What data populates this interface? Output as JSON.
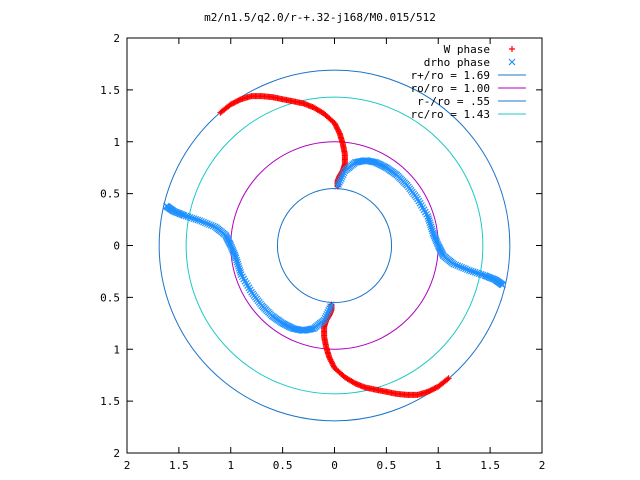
{
  "chart_data": {
    "type": "scatter",
    "title": "m2/n1.5/q2.0/r-+.32-j168/M0.015/512",
    "xlabel": "",
    "ylabel": "",
    "xlim": [
      -2,
      2
    ],
    "ylim": [
      -2,
      2
    ],
    "x_tick_values": [
      -2,
      -1.5,
      -1,
      -0.5,
      0,
      0.5,
      1,
      1.5,
      2
    ],
    "x_tick_labels": [
      "2",
      "1.5",
      "1",
      "0.5",
      "0",
      "0.5",
      "1",
      "1.5",
      "2"
    ],
    "y_tick_values": [
      2,
      1.5,
      1,
      0.5,
      0,
      -0.5,
      -1,
      -1.5,
      -2
    ],
    "y_tick_labels": [
      "2",
      "1.5",
      "1",
      "0.5",
      "0",
      "0.5",
      "1",
      "1.5",
      "2"
    ],
    "grid": false,
    "legend_position": "top-right",
    "series": [
      {
        "name": "W phase",
        "marker": "plus",
        "color": "#ff0000",
        "x": [
          -1.1,
          -1.0,
          -0.9,
          -0.8,
          -0.7,
          -0.6,
          -0.5,
          -0.4,
          -0.3,
          -0.2,
          -0.1,
          0.0,
          0.05,
          0.08,
          0.1,
          0.1,
          0.08,
          0.05,
          0.03,
          0.03,
          1.1,
          1.0,
          0.9,
          0.8,
          0.7,
          0.6,
          0.5,
          0.4,
          0.3,
          0.2,
          0.1,
          0.0,
          -0.05,
          -0.08,
          -0.1,
          -0.1,
          -0.08,
          -0.05,
          -0.03,
          -0.03
        ],
        "y": [
          1.28,
          1.36,
          1.41,
          1.44,
          1.44,
          1.43,
          1.41,
          1.39,
          1.37,
          1.33,
          1.27,
          1.18,
          1.08,
          0.98,
          0.88,
          0.78,
          0.72,
          0.67,
          0.62,
          0.57,
          -1.28,
          -1.36,
          -1.41,
          -1.44,
          -1.44,
          -1.43,
          -1.41,
          -1.39,
          -1.37,
          -1.33,
          -1.27,
          -1.18,
          -1.08,
          -0.98,
          -0.88,
          -0.78,
          -0.72,
          -0.67,
          -0.62,
          -0.57
        ]
      },
      {
        "name": "drho phase",
        "marker": "cross",
        "color": "#1e90ff",
        "x": [
          0.03,
          0.1,
          0.2,
          0.3,
          0.4,
          0.5,
          0.6,
          0.7,
          0.8,
          0.9,
          0.95,
          1.0,
          1.05,
          1.15,
          1.3,
          1.45,
          1.55,
          1.62,
          -0.03,
          -0.1,
          -0.2,
          -0.3,
          -0.4,
          -0.5,
          -0.6,
          -0.7,
          -0.8,
          -0.9,
          -0.95,
          -1.0,
          -1.05,
          -1.15,
          -1.3,
          -1.45,
          -1.55,
          -1.62
        ],
        "y": [
          0.57,
          0.72,
          0.8,
          0.82,
          0.8,
          0.75,
          0.68,
          0.58,
          0.45,
          0.28,
          0.12,
          0.0,
          -0.1,
          -0.18,
          -0.24,
          -0.29,
          -0.33,
          -0.38,
          -0.57,
          -0.72,
          -0.8,
          -0.82,
          -0.8,
          -0.75,
          -0.68,
          -0.58,
          -0.45,
          -0.28,
          -0.12,
          0.0,
          0.1,
          0.18,
          0.24,
          0.29,
          0.33,
          0.38
        ]
      },
      {
        "name": "r+/ro = 1.69",
        "kind": "circle",
        "radius": 1.69,
        "color": "#1e74c8"
      },
      {
        "name": "ro/ro = 1.00",
        "kind": "circle",
        "radius": 1.0,
        "color": "#b000c0"
      },
      {
        "name": "r-/ro = .55",
        "kind": "circle",
        "radius": 0.55,
        "color": "#1e74c8"
      },
      {
        "name": "rc/ro = 1.43",
        "kind": "circle",
        "radius": 1.43,
        "color": "#20c8c8"
      }
    ]
  }
}
